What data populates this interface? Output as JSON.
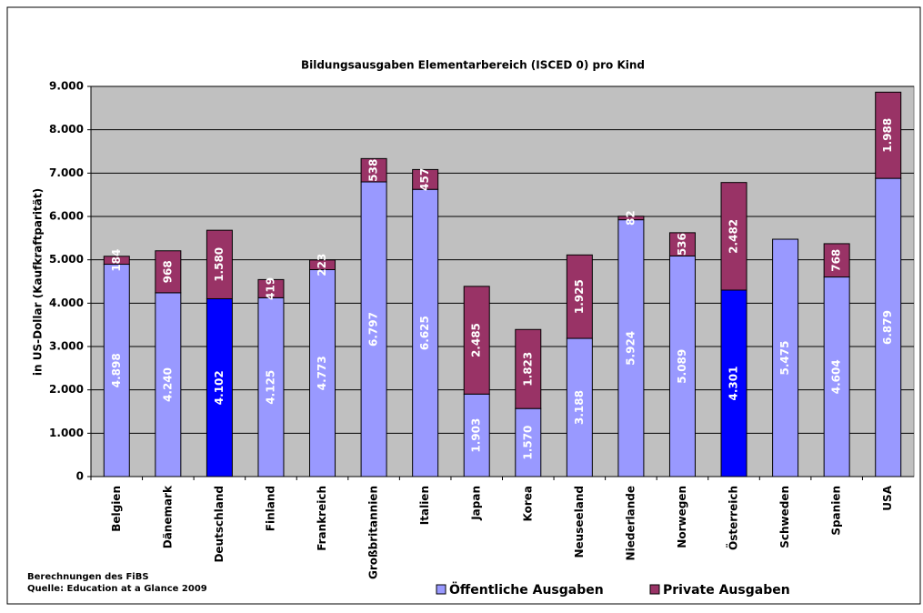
{
  "chart_data": {
    "type": "stacked_bar",
    "title": "Bildungsausgaben Elementarbereich (ISCED 0) pro Kind",
    "y_label": "in US-Dollar (Kaufkraftparität)",
    "notes": [
      "Berechnungen des FiBS",
      "Quelle: Education at a Glance 2009"
    ],
    "categories": [
      "Belgien",
      "Dänemark",
      "Deutschland",
      "Finland",
      "Frankreich",
      "Großbritannien",
      "Italien",
      "Japan",
      "Korea",
      "Neuseeland",
      "Niederlande",
      "Norwegen",
      "Österreich",
      "Schweden",
      "Spanien",
      "USA"
    ],
    "series": [
      {
        "name": "Öffentliche Ausgaben",
        "color": "#9999ff",
        "colors": [
          "#9999ff",
          "#9999ff",
          "#0000ff",
          "#9999ff",
          "#9999ff",
          "#9999ff",
          "#9999ff",
          "#9999ff",
          "#9999ff",
          "#9999ff",
          "#9999ff",
          "#9999ff",
          "#0000ff",
          "#9999ff",
          "#9999ff",
          "#9999ff"
        ],
        "values": [
          4898,
          4240,
          4102,
          4125,
          4773,
          6797,
          6625,
          1903,
          1570,
          3188,
          5924,
          5089,
          4301,
          5475,
          4604,
          6879
        ],
        "value_labels": [
          "4.898",
          "4.240",
          "4.102",
          "4.125",
          "4.773",
          "6.797",
          "6.625",
          "1.903",
          "1.570",
          "3.188",
          "5.924",
          "5.089",
          "4.301",
          "5.475",
          "4.604",
          "6.879"
        ]
      },
      {
        "name": "Private Ausgaben",
        "color": "#993366",
        "values": [
          184,
          968,
          1580,
          419,
          223,
          538,
          457,
          2485,
          1823,
          1925,
          82,
          536,
          2482,
          null,
          768,
          1988
        ],
        "value_labels": [
          "184",
          "968",
          "1.580",
          "419",
          "223",
          "538",
          "457",
          "2.485",
          "1.823",
          "1.925",
          "82",
          "536",
          "2.482",
          null,
          "768",
          "1.988"
        ]
      }
    ],
    "ylim": [
      0,
      9000
    ],
    "yticks": [
      0,
      {
        "value": 1000,
        "label": "1.000"
      },
      {
        "value": 2000,
        "label": "2.000"
      },
      {
        "value": 3000,
        "label": "3.000"
      },
      {
        "value": 4000,
        "label": "4.000"
      },
      {
        "value": 5000,
        "label": "5.000"
      },
      {
        "value": 6000,
        "label": "6.000"
      },
      {
        "value": 7000,
        "label": "7.000"
      },
      {
        "value": 8000,
        "label": "8.000"
      },
      {
        "value": 9000,
        "label": "9.000"
      }
    ],
    "grid": true,
    "legend": "bottom"
  }
}
